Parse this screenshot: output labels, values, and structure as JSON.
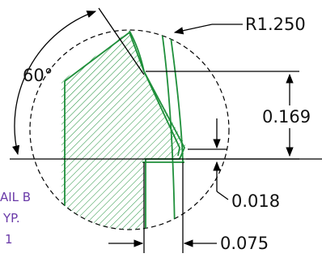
{
  "dimensions": {
    "radius": "R1.250",
    "angle": "60°",
    "height_upper": "0.169",
    "height_lower": "0.018",
    "width": "0.075"
  },
  "note": {
    "line1": "AIL B",
    "line2": "YP.",
    "line3": "1"
  },
  "colors": {
    "section_green": "#1e8f3a",
    "note_purple": "#6a3aa8",
    "dimension_black": "#000000"
  }
}
